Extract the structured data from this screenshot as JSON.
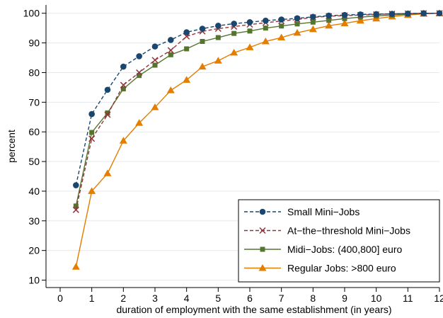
{
  "chart_data": {
    "type": "line",
    "xlabel": "duration of employment with the same establishment (in years)",
    "ylabel": "percent",
    "xlim": [
      0,
      12
    ],
    "ylim": [
      10,
      100
    ],
    "xticks": [
      "0",
      "1",
      "2",
      "3",
      "4",
      "5",
      "6",
      "7",
      "8",
      "9",
      "10",
      "11",
      "12"
    ],
    "yticks": [
      "10",
      "20",
      "30",
      "40",
      "50",
      "60",
      "70",
      "80",
      "90",
      "100"
    ],
    "grid": "horizontal",
    "legend_position": "bottom-right",
    "x": [
      0.5,
      1,
      1.5,
      2,
      2.5,
      3,
      3.5,
      4,
      4.5,
      5,
      5.5,
      6,
      6.5,
      7,
      7.5,
      8,
      8.5,
      9,
      9.5,
      10,
      10.5,
      11,
      11.5,
      12
    ],
    "series": [
      {
        "name": "Small Mini−Jobs",
        "color": "#1a476f",
        "line_style": "dashed",
        "marker": "circle",
        "values": [
          42,
          66,
          74.2,
          82,
          85.5,
          88.8,
          91,
          93.6,
          94.8,
          95.8,
          96.5,
          97,
          97.5,
          97.9,
          98.3,
          98.8,
          99.2,
          99.4,
          99.6,
          99.7,
          99.8,
          99.9,
          100,
          100
        ]
      },
      {
        "name": "At−the−threshold Mini−Jobs",
        "color": "#90353b",
        "line_style": "dashed",
        "marker": "x",
        "values": [
          33.7,
          57.7,
          65.8,
          75.8,
          80,
          84.2,
          87.5,
          92.2,
          93.9,
          94.8,
          95.5,
          96.2,
          96.8,
          97.4,
          97.9,
          98.6,
          99,
          99.2,
          99.4,
          99.6,
          99.8,
          99.9,
          100,
          100
        ]
      },
      {
        "name": "Midi−Jobs: (400,800] euro",
        "color": "#55752f",
        "line_style": "solid",
        "marker": "square",
        "values": [
          35,
          59.8,
          66.4,
          74.5,
          79,
          82.5,
          86,
          88,
          90.5,
          91.8,
          93.2,
          94,
          95,
          95.7,
          96.4,
          97,
          97.6,
          98.2,
          98.7,
          99.1,
          99.4,
          99.7,
          99.9,
          100
        ]
      },
      {
        "name": "Regular Jobs: >800 euro",
        "color": "#e37e00",
        "line_style": "solid",
        "marker": "triangle",
        "values": [
          14.5,
          40,
          46,
          57,
          63,
          68.3,
          74,
          77.5,
          82,
          84,
          86.7,
          88.5,
          90.5,
          91.8,
          93.4,
          94.6,
          95.8,
          96.6,
          97.5,
          98.2,
          98.9,
          99.4,
          99.8,
          100
        ]
      }
    ]
  }
}
